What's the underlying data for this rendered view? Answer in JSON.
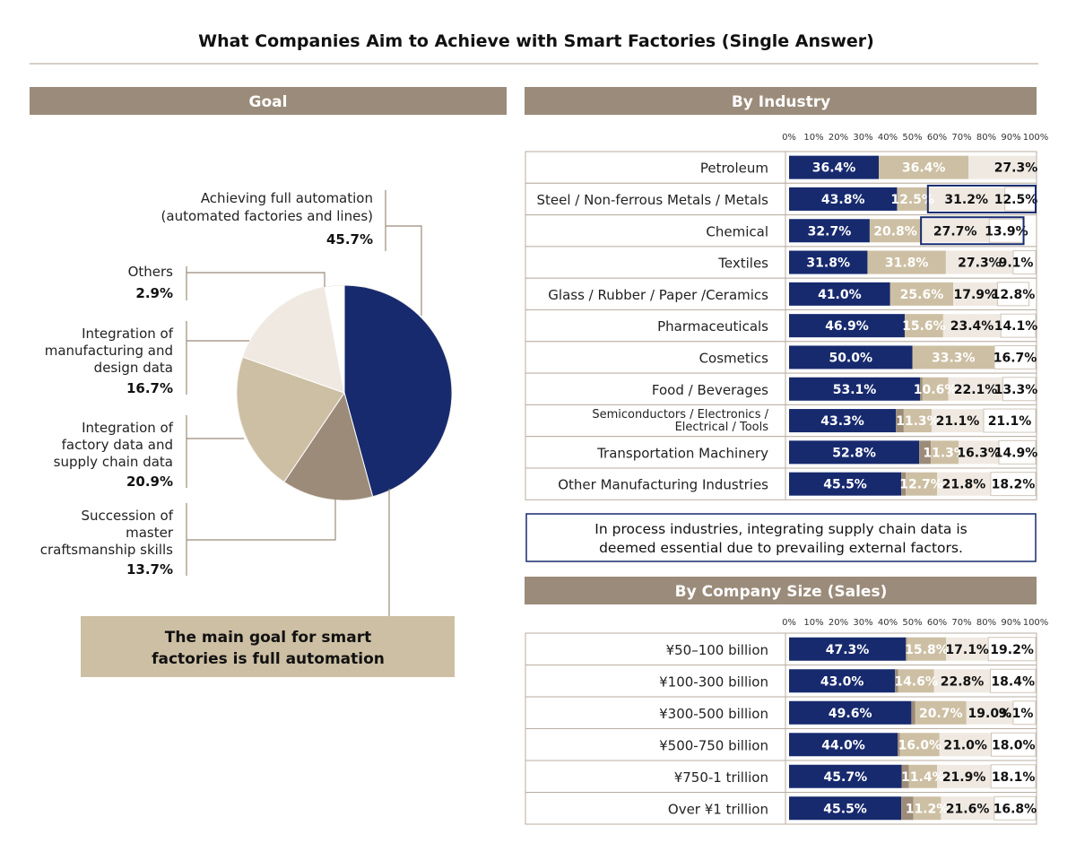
{
  "title": "What Companies Aim to Achieve with Smart Factories (Single Answer)",
  "colors": {
    "header": "#9b8b7a",
    "navy": "#172a6e",
    "taupe": "#9c8b79",
    "beige": "#cdbfa3",
    "cream": "#efe9e1",
    "white": "#ffffff",
    "line": "#9c8b79"
  },
  "goal_panel": {
    "header": "Goal",
    "callout": [
      "The main goal for smart",
      "factories is full automation"
    ]
  },
  "industry_panel": {
    "header": "By Industry",
    "note": [
      "In process industries, integrating supply chain data is",
      "deemed essential due to prevailing external factors."
    ]
  },
  "size_panel": {
    "header": "By Company Size (Sales)"
  },
  "chart_data": [
    {
      "type": "pie",
      "slices": [
        {
          "label_lines": [
            "Achieving full automation",
            "(automated factories and lines)"
          ],
          "value": 45.7,
          "value_label": "45.7%",
          "color": "navy"
        },
        {
          "label_lines": [
            "Succession of",
            "master",
            "craftsmanship skills"
          ],
          "value": 13.7,
          "value_label": "13.7%",
          "color": "taupe"
        },
        {
          "label_lines": [
            "Integration of",
            "factory data and",
            "supply chain data"
          ],
          "value": 20.9,
          "value_label": "20.9%",
          "color": "beige"
        },
        {
          "label_lines": [
            "Integration of",
            "manufacturing and",
            "design data"
          ],
          "value": 16.7,
          "value_label": "16.7%",
          "color": "cream"
        },
        {
          "label_lines": [
            "Others"
          ],
          "value": 2.9,
          "value_label": "2.9%",
          "color": "white"
        }
      ]
    },
    {
      "type": "bar",
      "orientation": "horizontal-stacked",
      "xlim": [
        0,
        100
      ],
      "ticks": [
        "0%",
        "10%",
        "20%",
        "30%",
        "40%",
        "50%",
        "60%",
        "70%",
        "80%",
        "90%",
        "100%"
      ],
      "categories": [
        [
          "Petroleum"
        ],
        [
          "Steel / Non-ferrous Metals / Metals"
        ],
        [
          "Chemical"
        ],
        [
          "Textiles"
        ],
        [
          "Glass / Rubber / Paper /Ceramics"
        ],
        [
          "Pharmaceuticals"
        ],
        [
          "Cosmetics"
        ],
        [
          "Food / Beverages"
        ],
        [
          "Semiconductors / Electronics /",
          "Electrical / Tools"
        ],
        [
          "Transportation Machinery"
        ],
        [
          "Other Manufacturing Industries"
        ]
      ],
      "values": [
        [
          36.4,
          0,
          36.4,
          27.3,
          0
        ],
        [
          43.8,
          0,
          12.5,
          31.2,
          12.5
        ],
        [
          32.7,
          0,
          20.8,
          27.7,
          13.9
        ],
        [
          31.8,
          0,
          31.8,
          27.3,
          9.1
        ],
        [
          41.0,
          0,
          25.6,
          17.9,
          12.8
        ],
        [
          46.9,
          0,
          15.6,
          23.4,
          14.1
        ],
        [
          50.0,
          0,
          33.3,
          0,
          16.7
        ],
        [
          53.1,
          0.9,
          10.6,
          22.1,
          13.3
        ],
        [
          43.3,
          3.2,
          11.3,
          21.1,
          21.1
        ],
        [
          52.8,
          4.7,
          11.3,
          16.3,
          14.9
        ],
        [
          45.5,
          1.8,
          12.7,
          21.8,
          18.2
        ]
      ],
      "labels": [
        [
          "36.4%",
          "",
          "36.4%",
          "",
          "27.3%"
        ],
        [
          "43.8%",
          "",
          "12.5%",
          "31.2%",
          "12.5%"
        ],
        [
          "32.7%",
          "",
          "20.8%",
          "27.7%",
          "13.9%"
        ],
        [
          "31.8%",
          "",
          "31.8%",
          "27.3%",
          "9.1%"
        ],
        [
          "41.0%",
          "",
          "25.6%",
          "17.9%",
          "12.8%"
        ],
        [
          "46.9%",
          "",
          "15.6%",
          "23.4%",
          "14.1%"
        ],
        [
          "50.0%",
          "",
          "33.3%",
          "",
          "16.7%"
        ],
        [
          "53.1%",
          "",
          "10.6%",
          "22.1%",
          "13.3%"
        ],
        [
          "43.3%",
          "",
          "11.3%",
          "21.1%",
          "21.1%"
        ],
        [
          "52.8%",
          "",
          "11.3%",
          "16.3%",
          "14.9%"
        ],
        [
          "45.5%",
          "",
          "12.7%",
          "21.8%",
          "18.2%"
        ]
      ],
      "highlight_rows": [
        1,
        2
      ]
    },
    {
      "type": "bar",
      "orientation": "horizontal-stacked",
      "xlim": [
        0,
        100
      ],
      "ticks": [
        "0%",
        "10%",
        "20%",
        "30%",
        "40%",
        "50%",
        "60%",
        "70%",
        "80%",
        "90%",
        "100%"
      ],
      "categories": [
        [
          "¥50–100 billion"
        ],
        [
          "¥100-300 billion"
        ],
        [
          "¥300-500 billion"
        ],
        [
          "¥500-750 billion"
        ],
        [
          "¥750-1 trillion"
        ],
        [
          "Over ¥1 trillion"
        ]
      ],
      "values": [
        [
          47.3,
          0.6,
          15.8,
          17.1,
          19.2
        ],
        [
          43.0,
          1.2,
          14.6,
          22.8,
          18.4
        ],
        [
          49.6,
          1.6,
          20.7,
          19.0,
          9.1
        ],
        [
          44.0,
          1.0,
          16.0,
          21.0,
          18.0
        ],
        [
          45.7,
          2.9,
          11.4,
          21.9,
          18.1
        ],
        [
          45.5,
          4.9,
          11.2,
          21.6,
          16.8
        ]
      ],
      "labels": [
        [
          "47.3%",
          "",
          "15.8%",
          "17.1%",
          "19.2%"
        ],
        [
          "43.0%",
          "",
          "14.6%",
          "22.8%",
          "18.4%"
        ],
        [
          "49.6%",
          "",
          "20.7%",
          "19.0%",
          "9.1%"
        ],
        [
          "44.0%",
          "",
          "16.0%",
          "21.0%",
          "18.0%"
        ],
        [
          "45.7%",
          "",
          "11.4%",
          "21.9%",
          "18.1%"
        ],
        [
          "45.5%",
          "",
          "11.2%",
          "21.6%",
          "16.8%"
        ]
      ]
    }
  ]
}
